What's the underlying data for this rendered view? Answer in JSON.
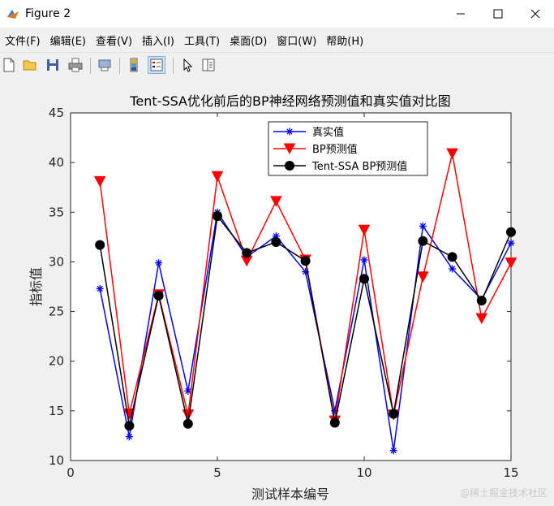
{
  "window": {
    "title": "Figure 2"
  },
  "menu": {
    "items": [
      "文件(F)",
      "编辑(E)",
      "查看(V)",
      "插入(I)",
      "工具(T)",
      "桌面(D)",
      "窗口(W)",
      "帮助(H)"
    ]
  },
  "toolbar": {
    "icons": [
      "new-figure-icon",
      "open-file-icon",
      "save-icon",
      "print-icon",
      "print-preview-icon",
      "link-plot-icon",
      "insert-colorbar-icon",
      "insert-legend-icon",
      "pointer-icon",
      "property-editor-icon"
    ]
  },
  "watermark": "@稀土掘金技术社区",
  "colors": {
    "true": "#0000ff",
    "bp": "#ff0000",
    "tent": "#000000"
  },
  "chart_data": {
    "type": "line",
    "title": "Tent-SSA优化前后的BP神经网络预测值和真实值对比图",
    "xlabel": "测试样本编号",
    "ylabel": "指标值",
    "xlim": [
      0,
      15
    ],
    "ylim": [
      10,
      45
    ],
    "xticks": [
      0,
      5,
      10,
      15
    ],
    "yticks": [
      10,
      15,
      20,
      25,
      30,
      35,
      40,
      45
    ],
    "grid": false,
    "legend_position": "top-right",
    "x": [
      1,
      2,
      3,
      4,
      5,
      6,
      7,
      8,
      9,
      10,
      11,
      12,
      13,
      14,
      15
    ],
    "series": [
      {
        "name": "真实值",
        "marker": "asterisk",
        "values": [
          27.3,
          12.4,
          29.9,
          17.0,
          35.0,
          30.5,
          32.6,
          29.0,
          15.0,
          30.2,
          11.0,
          33.6,
          29.3,
          26.2,
          31.9
        ]
      },
      {
        "name": "BP预测值",
        "marker": "triangle-down",
        "values": [
          38.1,
          14.7,
          26.7,
          14.6,
          38.6,
          30.1,
          36.1,
          30.2,
          14.0,
          33.2,
          14.6,
          28.5,
          40.9,
          24.3,
          29.9
        ]
      },
      {
        "name": "Tent-SSA BP预测值",
        "marker": "circle",
        "values": [
          31.7,
          13.5,
          26.6,
          13.7,
          34.6,
          30.9,
          32.0,
          30.1,
          13.8,
          28.3,
          14.7,
          32.1,
          30.5,
          26.1,
          33.0
        ]
      }
    ]
  }
}
